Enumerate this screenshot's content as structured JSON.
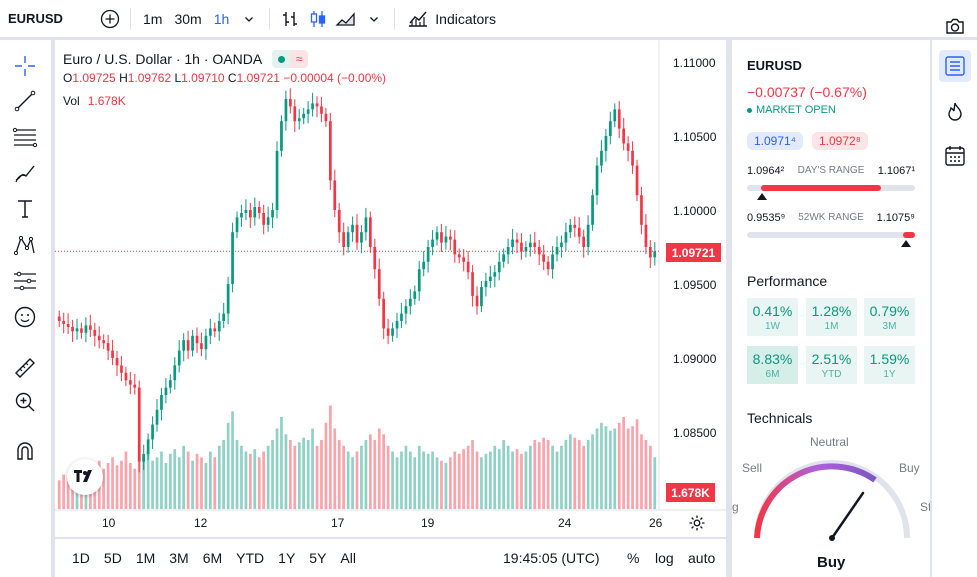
{
  "toolbar": {
    "symbol": "EURUSD",
    "intervals": [
      "1m",
      "30m",
      "1h"
    ],
    "active_interval": "1h",
    "indicators_label": "Indicators"
  },
  "legend": {
    "title": "Euro / U.S. Dollar · 1h · OANDA",
    "o_label": "O",
    "o": "1.09725",
    "h_label": "H",
    "h": "1.09762",
    "l_label": "L",
    "l": "1.09710",
    "c_label": "C",
    "c": "1.09721",
    "change": "−0.00004 (−0.00%)",
    "vol_label": "Vol",
    "vol_value": "1.678K"
  },
  "price_axis": {
    "ticks": [
      "1.11000",
      "1.10500",
      "1.10000",
      "1.09500",
      "1.09000",
      "1.08500"
    ],
    "last_price": "1.09721",
    "volume_badge": "1.678K"
  },
  "time_axis": {
    "ticks": [
      "10",
      "12",
      "17",
      "19",
      "24",
      "26"
    ]
  },
  "bottom_bar": {
    "ranges": [
      "1D",
      "5D",
      "1M",
      "3M",
      "6M",
      "YTD",
      "1Y",
      "5Y",
      "All"
    ],
    "time": "19:45:05 (UTC)",
    "pct": "%",
    "log": "log",
    "auto": "auto"
  },
  "right_panel": {
    "symbol": "EURUSD",
    "change": "−0.00737 (−0.67%)",
    "status": "MARKET OPEN",
    "bid": "1.0971⁴",
    "ask": "1.0972⁸",
    "days_range": {
      "low": "1.0964²",
      "label": "DAY'S RANGE",
      "high": "1.1067¹",
      "position": 0.04
    },
    "wk52_range": {
      "low": "0.9535⁹",
      "label": "52WK RANGE",
      "high": "1.1075⁹",
      "position": 0.95
    },
    "performance_title": "Performance",
    "performance": [
      {
        "value": "0.41%",
        "label": "1W"
      },
      {
        "value": "1.28%",
        "label": "1M"
      },
      {
        "value": "0.79%",
        "label": "3M"
      },
      {
        "value": "8.83%",
        "label": "6M"
      },
      {
        "value": "2.51%",
        "label": "YTD"
      },
      {
        "value": "1.59%",
        "label": "1Y"
      }
    ],
    "technicals_title": "Technicals",
    "gauge": {
      "neutral": "Neutral",
      "sell": "Sell",
      "buy": "Buy",
      "strong_sell": "g",
      "strong_buy": "St",
      "result": "Buy"
    }
  },
  "colors": {
    "up": "#089981",
    "down": "#f23645",
    "accent": "#2962ff"
  },
  "chart_data": {
    "type": "candlestick",
    "price_range": [
      1.0805,
      1.1115
    ],
    "close_prices": [
      1.0925,
      1.0923,
      1.0921,
      1.0918,
      1.092,
      1.0917,
      1.0922,
      1.0919,
      1.0915,
      1.0912,
      1.091,
      1.0905,
      1.09,
      1.0895,
      1.089,
      1.0885,
      1.0882,
      1.088,
      1.083,
      1.0835,
      1.0845,
      1.0855,
      1.0865,
      1.0875,
      1.088,
      1.0885,
      1.0895,
      1.0905,
      1.0912,
      1.0905,
      1.0915,
      1.091,
      1.0906,
      1.0915,
      1.092,
      1.0918,
      1.0925,
      1.093,
      1.095,
      1.0985,
      1.0995,
      1.0998,
      1.1,
      1.0995,
      1.1002,
      1.0998,
      1.099,
      1.0995,
      1.1,
      1.104,
      1.106,
      1.1075,
      1.107,
      1.106,
      1.1062,
      1.1065,
      1.1068,
      1.1072,
      1.107,
      1.1065,
      1.106,
      1.102,
      1.1,
      1.0985,
      1.0975,
      1.0985,
      1.099,
      1.0978,
      1.0985,
      1.0995,
      1.0975,
      1.096,
      1.094,
      1.092,
      1.0915,
      1.092,
      1.0925,
      1.093,
      1.0935,
      1.094,
      1.0945,
      1.096,
      1.0965,
      1.0975,
      1.098,
      1.0985,
      1.0978,
      1.0982,
      1.098,
      1.097,
      1.0968,
      1.0965,
      1.0958,
      1.0942,
      1.0935,
      1.0948,
      1.0952,
      1.0955,
      1.0958,
      1.0965,
      1.097,
      1.0975,
      1.098,
      1.0978,
      1.0972,
      1.0975,
      1.0978,
      1.0975,
      1.097,
      1.0965,
      1.096,
      1.097,
      1.0975,
      1.0978,
      1.0985,
      1.099,
      1.0988,
      1.0982,
      1.0975,
      1.099,
      1.101,
      1.103,
      1.104,
      1.105,
      1.106,
      1.1068,
      1.1055,
      1.1045,
      1.104,
      1.103,
      1.101,
      1.099,
      1.0975,
      1.0968,
      1.0972
    ],
    "volumes": [
      0.25,
      0.3,
      0.28,
      0.35,
      0.3,
      0.4,
      0.33,
      0.38,
      0.3,
      0.42,
      0.35,
      0.4,
      0.45,
      0.38,
      0.42,
      0.5,
      0.4,
      0.35,
      0.55,
      0.48,
      0.5,
      0.42,
      0.45,
      0.5,
      0.4,
      0.48,
      0.52,
      0.45,
      0.55,
      0.5,
      0.42,
      0.48,
      0.45,
      0.4,
      0.5,
      0.45,
      0.55,
      0.6,
      0.75,
      0.85,
      0.6,
      0.55,
      0.5,
      0.48,
      0.52,
      0.45,
      0.5,
      0.55,
      0.6,
      0.7,
      0.8,
      0.65,
      0.6,
      0.55,
      0.58,
      0.62,
      0.6,
      0.7,
      0.55,
      0.6,
      0.75,
      0.9,
      0.7,
      0.6,
      0.55,
      0.5,
      0.45,
      0.5,
      0.55,
      0.6,
      0.65,
      0.6,
      0.7,
      0.65,
      0.55,
      0.5,
      0.45,
      0.5,
      0.55,
      0.5,
      0.45,
      0.55,
      0.5,
      0.48,
      0.5,
      0.45,
      0.42,
      0.4,
      0.45,
      0.5,
      0.48,
      0.52,
      0.55,
      0.6,
      0.5,
      0.45,
      0.48,
      0.5,
      0.55,
      0.52,
      0.6,
      0.55,
      0.5,
      0.52,
      0.48,
      0.5,
      0.55,
      0.6,
      0.58,
      0.62,
      0.6,
      0.55,
      0.5,
      0.55,
      0.6,
      0.65,
      0.62,
      0.6,
      0.55,
      0.6,
      0.65,
      0.7,
      0.75,
      0.72,
      0.68,
      0.7,
      0.75,
      0.8,
      0.7,
      0.72,
      0.78,
      0.65,
      0.6,
      0.55,
      0.45
    ]
  }
}
